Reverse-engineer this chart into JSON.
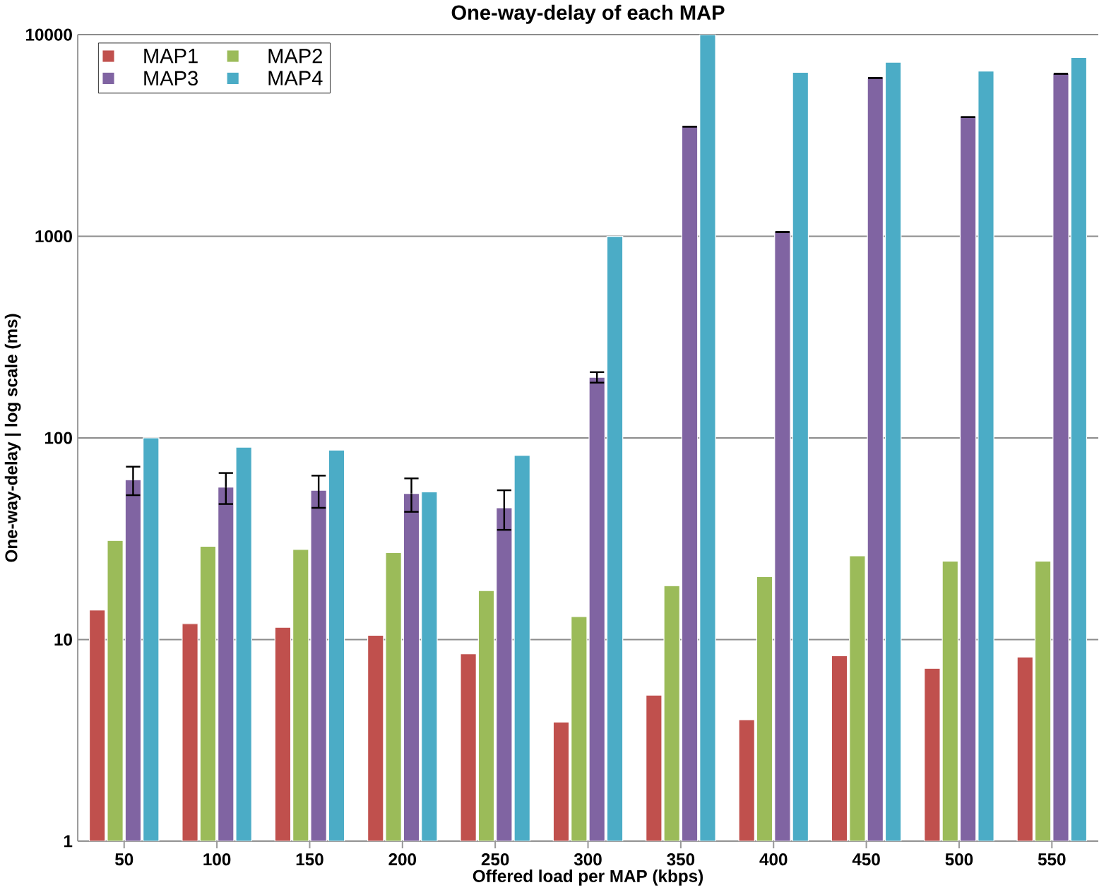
{
  "chart_data": {
    "type": "bar",
    "title": "One-way-delay of each MAP",
    "xlabel": "Offered load per MAP (kbps)",
    "ylabel": "One-way-delay | log  scale (ms)",
    "categories": [
      "50",
      "100",
      "150",
      "200",
      "250",
      "300",
      "350",
      "400",
      "450",
      "500",
      "550"
    ],
    "series": [
      {
        "name": "MAP1",
        "color": "#c0504d",
        "values": [
          14,
          12,
          11.5,
          10.5,
          8.5,
          3.9,
          5.3,
          4,
          8.3,
          7.2,
          8.2
        ]
      },
      {
        "name": "MAP2",
        "color": "#9bbb59",
        "values": [
          31,
          29,
          28,
          27,
          17.5,
          13,
          18.5,
          20.5,
          26,
          24.5,
          24.5
        ]
      },
      {
        "name": "MAP3",
        "color": "#8064a2",
        "values": [
          62,
          57,
          55,
          53,
          45,
          200,
          3500,
          1050,
          6100,
          3900,
          6400
        ],
        "errors": [
          10,
          10,
          10,
          10,
          10,
          12,
          null,
          null,
          null,
          null,
          null
        ]
      },
      {
        "name": "MAP4",
        "color": "#4bacc6",
        "values": [
          100,
          90,
          87,
          54,
          82,
          1000,
          10000,
          6500,
          7300,
          6600,
          7700
        ]
      }
    ],
    "log": true,
    "ylim": [
      1,
      10000
    ],
    "yticks": [
      1,
      10,
      100,
      1000,
      10000
    ],
    "grid": "y",
    "legend": "top left"
  }
}
